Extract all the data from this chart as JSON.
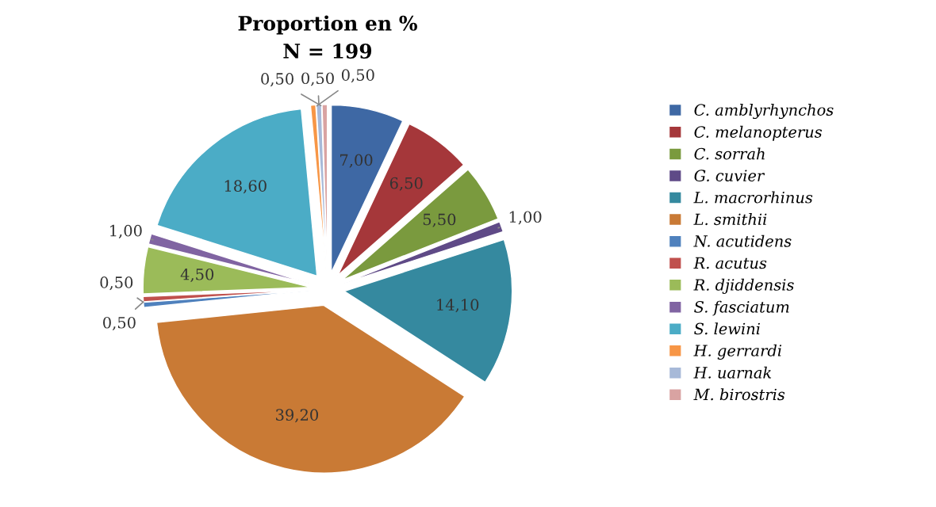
{
  "chart_data": {
    "type": "pie",
    "title": "Proportion en %",
    "subtitle": "N = 199",
    "categories": [
      "C. amblyrhynchos",
      "C. melanopterus",
      "C. sorrah",
      "G. cuvier",
      "L. macrorhinus",
      "L. smithii",
      "N. acutidens",
      "R. acutus",
      "R. djiddensis",
      "S. fasciatum",
      "S. lewini",
      "H. gerrardi",
      "H. uarnak",
      "M. birostris"
    ],
    "values": [
      7.0,
      6.5,
      5.5,
      1.0,
      14.1,
      39.2,
      0.5,
      0.5,
      4.5,
      1.0,
      18.6,
      0.5,
      0.5,
      0.5
    ],
    "value_labels": [
      "7,00",
      "6,50",
      "5,50",
      "1,00",
      "14,10",
      "39,20",
      "0,50",
      "0,50",
      "4,50",
      "1,00",
      "18,60",
      "0,50",
      "0,50",
      "0,50"
    ],
    "colors": [
      "#3e68a4",
      "#a5373a",
      "#7a9a3e",
      "#5f4a87",
      "#35899f",
      "#c97a35",
      "#4f81bd",
      "#c0504d",
      "#9bbb59",
      "#8064a2",
      "#4bacc6",
      "#f79646",
      "#a7b9d8",
      "#d9a3a2"
    ],
    "legend": "right"
  }
}
